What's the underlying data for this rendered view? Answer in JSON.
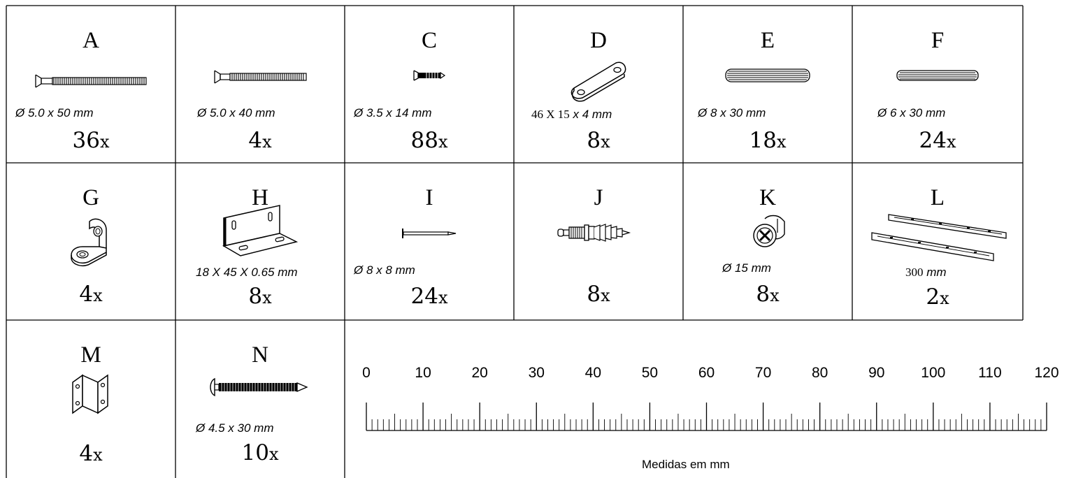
{
  "parts": [
    {
      "letter": "A",
      "dim": "Ø 5.0 x 50 mm",
      "qty": "36",
      "unit": "x",
      "icon": "long-screw-icon"
    },
    {
      "letter": "",
      "dim": "Ø 5.0 x 40 mm",
      "qty": "4",
      "unit": "x",
      "icon": "medium-screw-icon"
    },
    {
      "letter": "C",
      "dim": "Ø 3.5 x 14 mm",
      "qty": "88",
      "unit": "x",
      "icon": "short-screw-icon"
    },
    {
      "letter": "D",
      "dim_num": "46 X 15",
      "dim_unit": " x 4 mm",
      "qty": "8",
      "unit": "x",
      "icon": "connector-plate-icon"
    },
    {
      "letter": "E",
      "dim": "Ø 8 x 30 mm",
      "qty": "18",
      "unit": "x",
      "icon": "wood-dowel-icon"
    },
    {
      "letter": "F",
      "dim": "Ø 6 x 30 mm",
      "qty": "24",
      "unit": "x",
      "icon": "wood-dowel-small-icon"
    },
    {
      "letter": "G",
      "dim": "",
      "qty": "4",
      "unit": "x",
      "icon": "shelf-support-icon"
    },
    {
      "letter": "H",
      "dim": "18 X 45 X 0.65 mm",
      "qty": "8",
      "unit": "x",
      "icon": "angle-bracket-icon"
    },
    {
      "letter": "I",
      "dim": "Ø 8 x 8 mm",
      "qty": "24",
      "unit": "x",
      "icon": "nail-icon"
    },
    {
      "letter": "J",
      "dim": "",
      "qty": "8",
      "unit": "x",
      "icon": "cam-bolt-icon"
    },
    {
      "letter": "K",
      "dim": "Ø 15 mm",
      "qty": "8",
      "unit": "x",
      "icon": "cam-lock-icon"
    },
    {
      "letter": "L",
      "dim_num": "300",
      "dim_unit": " mm",
      "qty": "2",
      "unit": "x",
      "icon": "drawer-rail-icon"
    },
    {
      "letter": "M",
      "dim": "",
      "qty": "4",
      "unit": "x",
      "icon": "z-bracket-icon"
    },
    {
      "letter": "N",
      "dim": "Ø 4.5 x 30 mm",
      "qty": "10",
      "unit": "x",
      "icon": "round-head-screw-icon"
    }
  ],
  "ruler": {
    "numbers": [
      "0",
      "10",
      "20",
      "30",
      "40",
      "50",
      "60",
      "70",
      "80",
      "90",
      "100",
      "110",
      "120"
    ],
    "caption": "Medidas em mm"
  }
}
